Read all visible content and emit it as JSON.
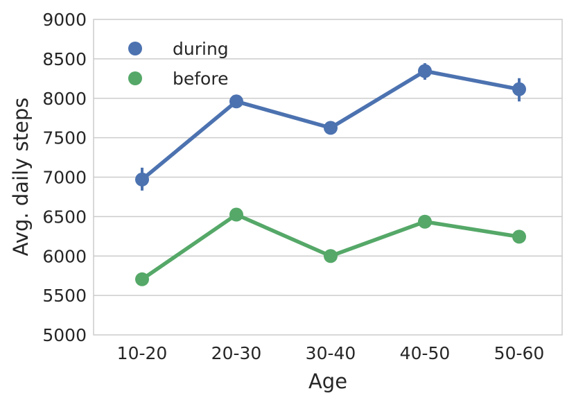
{
  "chart_data": {
    "type": "line",
    "title": "",
    "xlabel": "Age",
    "ylabel": "Avg. daily steps",
    "categories": [
      "10-20",
      "20-30",
      "30-40",
      "40-50",
      "50-60"
    ],
    "ylim": [
      5000,
      9000
    ],
    "yticks": [
      5000,
      5500,
      6000,
      6500,
      7000,
      7500,
      8000,
      8500,
      9000
    ],
    "grid": true,
    "legend_position": "top-left",
    "series": [
      {
        "name": "during",
        "color": "#4c72b0",
        "values": [
          6970,
          7960,
          7625,
          8345,
          8115
        ],
        "error_low": [
          6830,
          7890,
          7565,
          8235,
          7960
        ],
        "error_high": [
          7120,
          8040,
          7685,
          8445,
          8255
        ]
      },
      {
        "name": "before",
        "color": "#55a868",
        "values": [
          5705,
          6525,
          6000,
          6435,
          6245
        ],
        "error_low": [
          5660,
          6500,
          5980,
          6415,
          6180
        ],
        "error_high": [
          5760,
          6550,
          6020,
          6455,
          6310
        ]
      }
    ]
  }
}
